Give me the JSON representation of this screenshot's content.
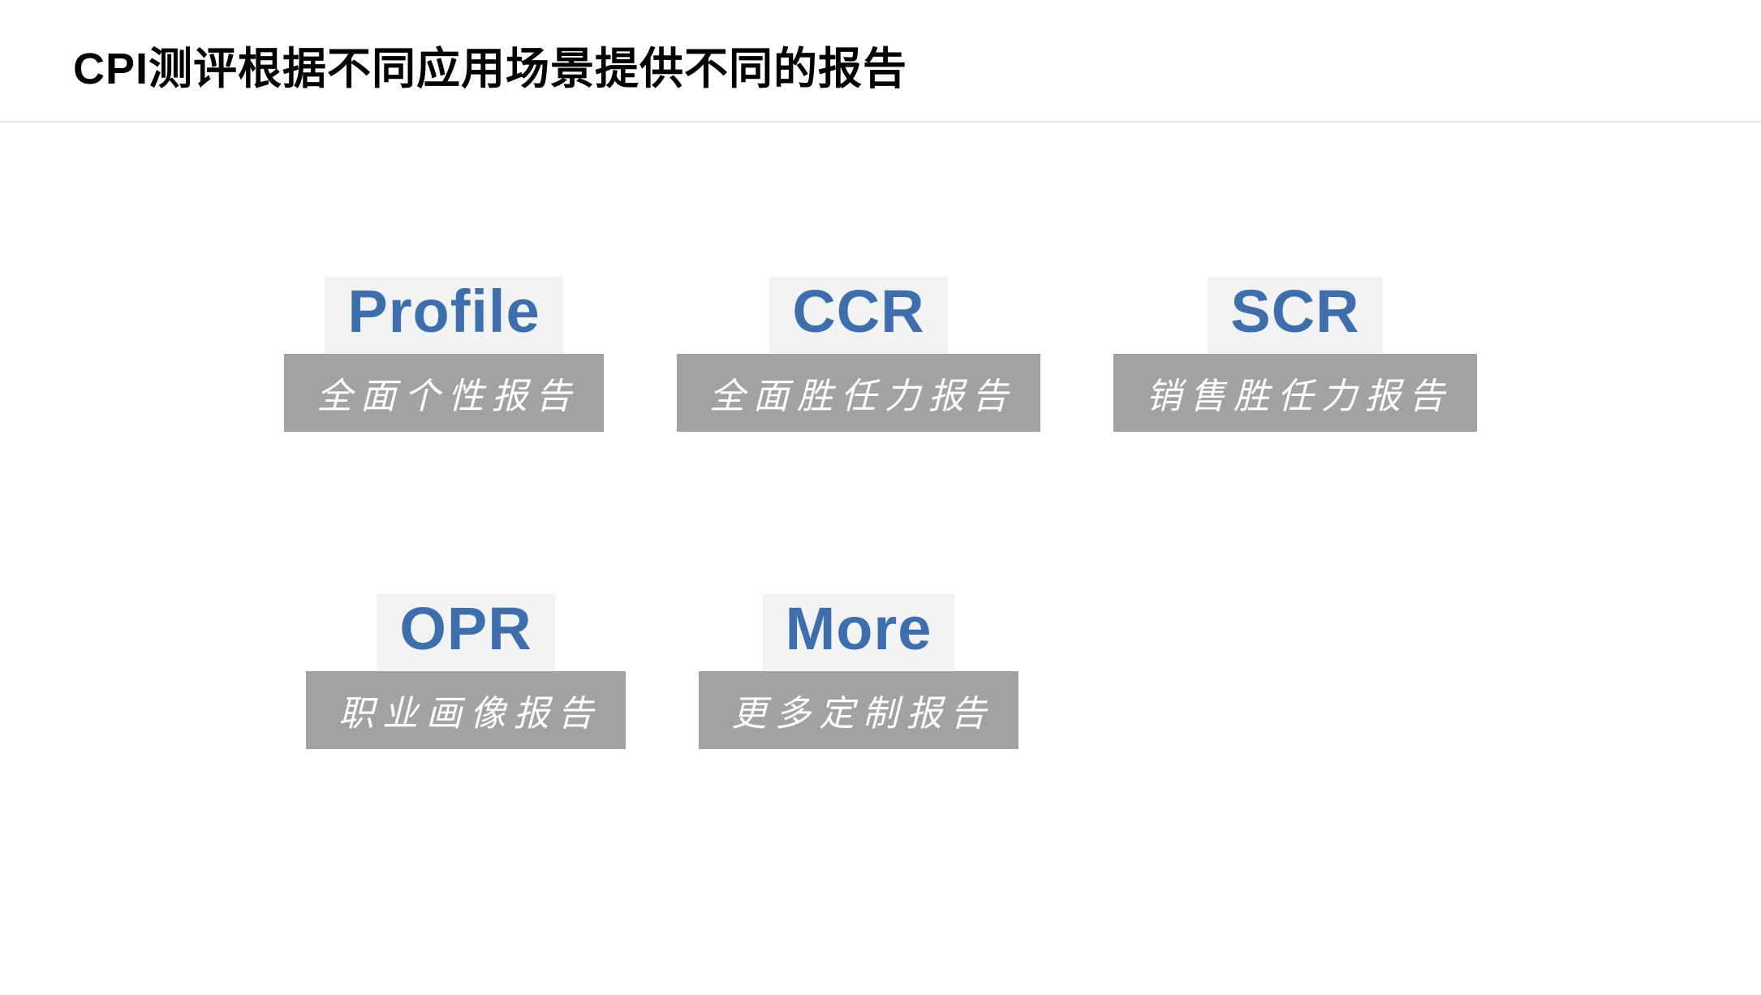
{
  "colors": {
    "title_text": "#000000",
    "head_bg": "#f3f3f3",
    "head_text": "#3d6faf",
    "sub_bg": "#a2a2a2",
    "sub_text": "#ffffff",
    "divider": "#e8e8e8",
    "page_bg": "#ffffff"
  },
  "title": "CPI测评根据不同应用场景提供不同的报告",
  "cards": {
    "r1c1": {
      "head": "Profile",
      "sub": "全面个性报告"
    },
    "r1c2": {
      "head": "CCR",
      "sub": "全面胜任力报告"
    },
    "r1c3": {
      "head": "SCR",
      "sub": "销售胜任力报告"
    },
    "r2c1": {
      "head": "OPR",
      "sub": "职业画像报告"
    },
    "r2c2": {
      "head": "More",
      "sub": "更多定制报告"
    }
  }
}
